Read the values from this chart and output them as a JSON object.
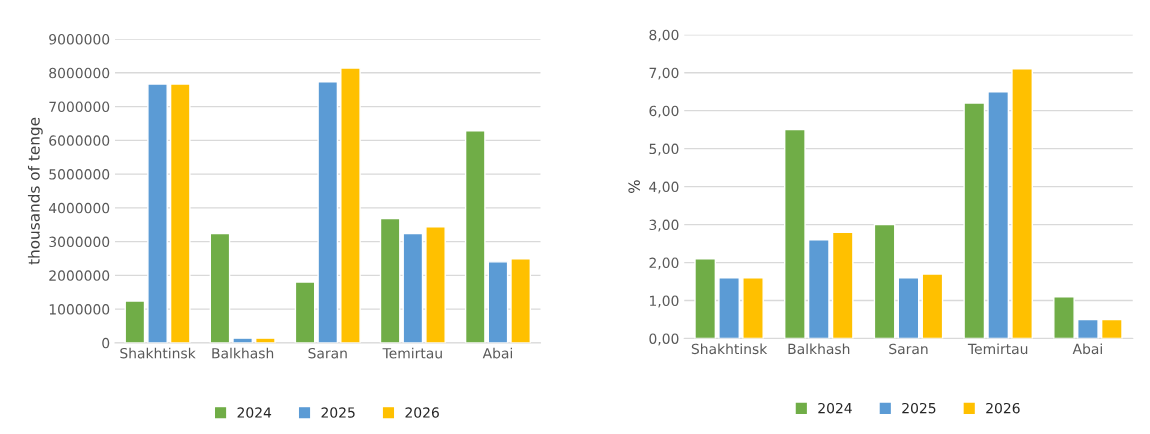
{
  "chart_data": [
    {
      "type": "bar",
      "ylabel": "thousands of tenge",
      "categories": [
        "Shakhtinsk",
        "Balkhash",
        "Saran",
        "Temirtau",
        "Abai"
      ],
      "series": [
        {
          "name": "2024",
          "color": "#70ad47",
          "values": [
            1240000,
            3240000,
            1800000,
            3680000,
            6280000
          ]
        },
        {
          "name": "2025",
          "color": "#5b9bd5",
          "values": [
            7670000,
            140000,
            7730000,
            3240000,
            2400000
          ]
        },
        {
          "name": "2026",
          "color": "#ffc000",
          "values": [
            7670000,
            140000,
            8140000,
            3440000,
            2490000
          ]
        }
      ],
      "ylim": [
        0,
        9000000
      ],
      "yticks": [
        0,
        1000000,
        2000000,
        3000000,
        4000000,
        5000000,
        6000000,
        7000000,
        8000000,
        9000000
      ],
      "grid": "y",
      "legend": "bottom"
    },
    {
      "type": "bar",
      "ylabel": "%",
      "categories": [
        "Shakhtinsk",
        "Balkhash",
        "Saran",
        "Temirtau",
        "Abai"
      ],
      "series": [
        {
          "name": "2024",
          "color": "#70ad47",
          "values": [
            2.1,
            5.5,
            3.0,
            6.2,
            1.1
          ]
        },
        {
          "name": "2025",
          "color": "#5b9bd5",
          "values": [
            1.6,
            2.6,
            1.6,
            6.5,
            0.5
          ]
        },
        {
          "name": "2026",
          "color": "#ffc000",
          "values": [
            1.6,
            2.8,
            1.7,
            7.1,
            0.5
          ]
        }
      ],
      "ylim": [
        0,
        8
      ],
      "yticks": [
        {
          "value": 0,
          "label": "0,00"
        },
        {
          "value": 1,
          "label": "1,00"
        },
        {
          "value": 2,
          "label": "2,00"
        },
        {
          "value": 3,
          "label": "3,00"
        },
        {
          "value": 4,
          "label": "4,00"
        },
        {
          "value": 5,
          "label": "5,00"
        },
        {
          "value": 6,
          "label": "6,00"
        },
        {
          "value": 7,
          "label": "7,00"
        },
        {
          "value": 8,
          "label": "8,00"
        }
      ],
      "grid": "y",
      "legend": "bottom"
    }
  ]
}
